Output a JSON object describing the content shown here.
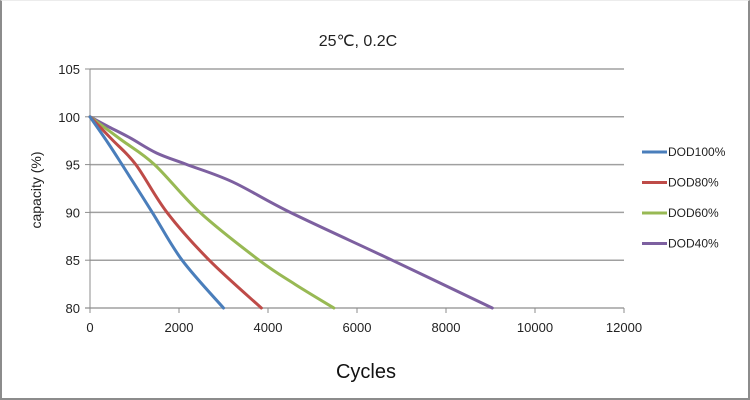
{
  "chart_data": {
    "type": "line",
    "title": "25℃, 0.2C",
    "xlabel": "Cycles",
    "ylabel": "capacity (%)",
    "xlim": [
      0,
      12000
    ],
    "ylim": [
      80,
      105
    ],
    "xticks": [
      0,
      2000,
      4000,
      6000,
      8000,
      10000,
      12000
    ],
    "yticks": [
      80,
      85,
      90,
      95,
      100,
      105
    ],
    "xtick_labels": [
      "0",
      "2000",
      "4000",
      "6000",
      "8000",
      "10000",
      "12000"
    ],
    "ytick_labels": [
      "80",
      "85",
      "90",
      "95",
      "100",
      "105"
    ],
    "grid": "horizontal",
    "legend_position": "right",
    "series": [
      {
        "name": "DOD100%",
        "color": "#4a7ebb",
        "x": [
          0,
          400,
          720,
          1400,
          2070,
          3000
        ],
        "y": [
          100,
          97.3,
          95,
          90,
          85,
          80
        ]
      },
      {
        "name": "DOD80%",
        "color": "#be4b48",
        "x": [
          0,
          500,
          1030,
          1730,
          2680,
          3850
        ],
        "y": [
          100,
          97.6,
          95,
          90,
          85,
          80
        ]
      },
      {
        "name": "DOD60%",
        "color": "#98b954",
        "x": [
          0,
          700,
          1450,
          2470,
          3800,
          4600,
          5480
        ],
        "y": [
          100,
          97.6,
          95,
          90,
          85,
          82.5,
          80
        ]
      },
      {
        "name": "DOD40%",
        "color": "#7d60a0",
        "x": [
          0,
          400,
          900,
          1500,
          2180,
          3200,
          4500,
          6790,
          9040
        ],
        "y": [
          100,
          99.0,
          97.8,
          96.2,
          95,
          93.2,
          90,
          85,
          80
        ]
      }
    ]
  }
}
